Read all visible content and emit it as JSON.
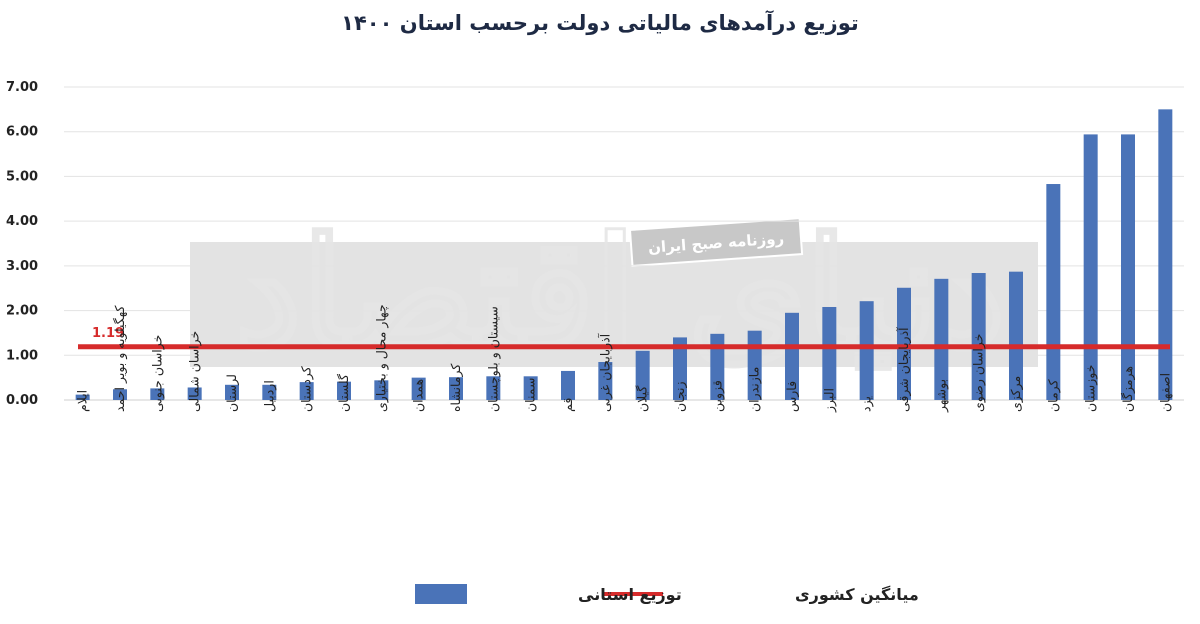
{
  "chart_data": {
    "type": "bar",
    "title": "توزیع درآمدهای مالیاتی دولت برحسب استان ۱۴۰۰",
    "categories": [
      "ایلام",
      "کهگیلویه و بویر احمد",
      "خراسان جنوبی",
      "خراسان شمالی",
      "لرستان",
      "اردبیل",
      "کردستان",
      "گلستان",
      "چهار محال و بختیاری",
      "همدان",
      "کرمانشاه",
      "سیستان و بلوچستان",
      "سمنان",
      "قم",
      "آذربایجان غربی",
      "گیلان",
      "زنجان",
      "قزوین",
      "مازندران",
      "فارس",
      "البرز",
      "یزد",
      "آذربایجان شرقی",
      "بوشهر",
      "خراسان رضوی",
      "مرکزی",
      "کرمان",
      "خوزستان",
      "هرمزگان",
      "اصفهان"
    ],
    "series": [
      {
        "name": "توزیع استانی",
        "type": "bar",
        "color": "#4a73b8",
        "values": [
          0.12,
          0.24,
          0.26,
          0.28,
          0.34,
          0.34,
          0.4,
          0.41,
          0.44,
          0.5,
          0.51,
          0.53,
          0.53,
          0.65,
          0.85,
          1.1,
          1.4,
          1.48,
          1.55,
          1.95,
          2.08,
          2.21,
          2.51,
          2.71,
          2.84,
          2.87,
          4.83,
          5.94,
          5.94,
          6.5
        ]
      },
      {
        "name": "میانگین کشوری",
        "type": "line",
        "color": "#d62b2b",
        "value": 1.19
      }
    ],
    "average_label": "1.19",
    "ylim": [
      0,
      7
    ],
    "yticks": [
      "0.00",
      "1.00",
      "2.00",
      "3.00",
      "4.00",
      "5.00",
      "6.00",
      "7.00"
    ],
    "ytick_values": [
      0,
      1,
      2,
      3,
      4,
      5,
      6,
      7
    ],
    "grid": true,
    "legend_placement": "bottom-center",
    "xlabel": "",
    "ylabel": ""
  },
  "watermark": {
    "brand_text": "دنیای اقتصاد",
    "box_text": "روزنامه صبح ایران"
  }
}
